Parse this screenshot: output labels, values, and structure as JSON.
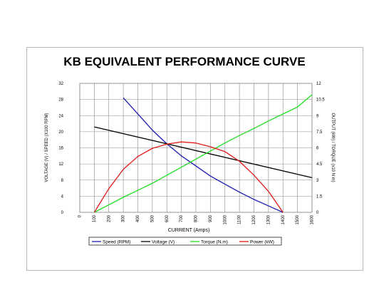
{
  "chart_data": {
    "type": "line",
    "title": "KB EQUIVALENT PERFORMANCE CURVE",
    "xlabel": "CURRENT (Amps)",
    "ylabel_left": "VOLTAGE (V) / SPEED (X100 RPM)",
    "ylabel_right": "OUTPUT (kW) / TORQUE (x10 N m)",
    "x_ticks": [
      "0",
      "100",
      "200",
      "300",
      "400",
      "500",
      "600",
      "700",
      "800",
      "900",
      "1000",
      "1100",
      "1200",
      "1300",
      "1400",
      "1500",
      "1600"
    ],
    "y_left_ticks": [
      "0",
      "4",
      "8",
      "12",
      "16",
      "20",
      "24",
      "28",
      "32"
    ],
    "y_right_ticks": [
      "0",
      "1.5",
      "3",
      "4.5",
      "6",
      "7.5",
      "9",
      "10.5",
      "12"
    ],
    "xlim": [
      0,
      1600
    ],
    "ylim_left": [
      0,
      32
    ],
    "ylim_right": [
      0,
      12
    ],
    "grid": true,
    "legend_position": "bottom",
    "series": [
      {
        "name": "Speed (RPM)",
        "color": "#1c1cb0",
        "axis": "left",
        "x": [
          300,
          400,
          500,
          600,
          700,
          800,
          900,
          1000,
          1100,
          1200,
          1300,
          1400
        ],
        "y": [
          28.4,
          24.4,
          20.4,
          17,
          14,
          11.5,
          9,
          7,
          5,
          3.2,
          1.6,
          0
        ]
      },
      {
        "name": "Voltage (V)",
        "color": "#000000",
        "axis": "left",
        "x": [
          100,
          1600
        ],
        "y": [
          21.2,
          8.6
        ]
      },
      {
        "name": "Torque (N.m)",
        "color": "#22dd22",
        "axis": "right",
        "x": [
          100,
          200,
          300,
          400,
          500,
          600,
          700,
          800,
          900,
          1000,
          1100,
          1200,
          1300,
          1400,
          1500,
          1600
        ],
        "y": [
          0,
          0.7,
          1.4,
          2.05,
          2.7,
          3.45,
          4.2,
          4.95,
          5.7,
          6.45,
          7.15,
          7.8,
          8.5,
          9.15,
          9.8,
          10.95
        ]
      },
      {
        "name": "Power (kW)",
        "color": "#e01a1a",
        "axis": "right",
        "x": [
          100,
          200,
          300,
          400,
          500,
          600,
          700,
          800,
          900,
          1000,
          1100,
          1200,
          1300,
          1400
        ],
        "y": [
          0,
          2.2,
          4,
          5.2,
          5.95,
          6.35,
          6.55,
          6.45,
          6.1,
          5.65,
          4.75,
          3.45,
          1.95,
          0
        ]
      }
    ]
  }
}
